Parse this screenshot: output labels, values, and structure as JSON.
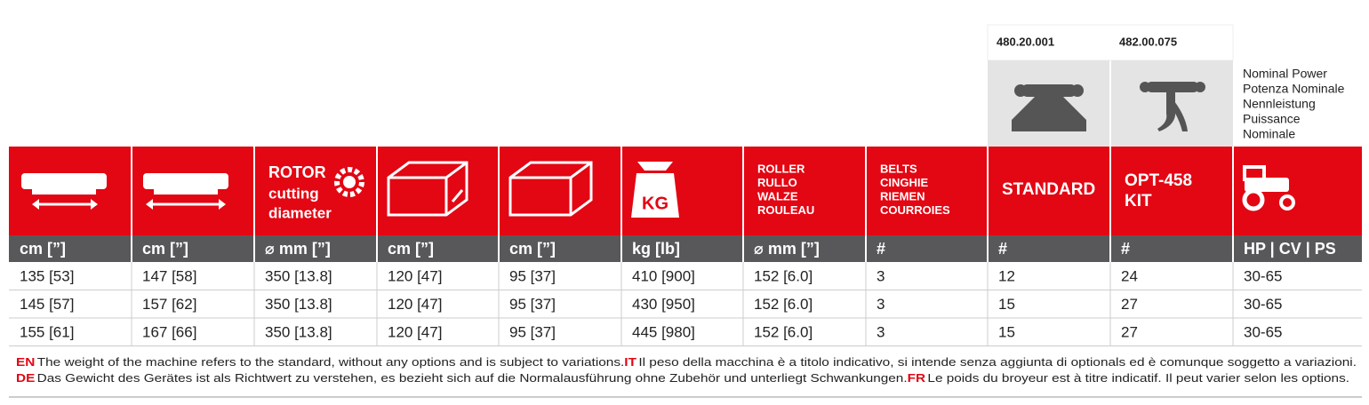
{
  "header": {
    "codes": [
      "480.20.001",
      "482.00.075"
    ],
    "nominal_power": [
      "Nominal Power",
      "Potenza Nominale",
      "Nennleistung",
      "Puissance",
      "Nominale"
    ],
    "rotor": [
      "ROTOR",
      "cutting",
      "diameter"
    ],
    "weight_icon": "KG",
    "roller": [
      "ROLLER",
      "RULLO",
      "WALZE",
      "ROULEAU"
    ],
    "belts": [
      "BELTS",
      "CINGHIE",
      "RIEMEN",
      "COURROIES"
    ],
    "standard": "STANDARD",
    "opt": [
      "OPT-458",
      "KIT"
    ]
  },
  "table": {
    "units": [
      "cm [”]",
      "cm [”]",
      "⌀ mm [”]",
      "cm [”]",
      "cm [”]",
      "kg [lb]",
      "⌀ mm [”]",
      "#",
      "#",
      "#",
      "HP | CV | PS"
    ],
    "rows": [
      [
        "135 [53]",
        "147 [58]",
        "350 [13.8]",
        "120 [47]",
        "95 [37]",
        "410 [900]",
        "152 [6.0]",
        "3",
        "12",
        "24",
        "30-65"
      ],
      [
        "145 [57]",
        "157 [62]",
        "350 [13.8]",
        "120 [47]",
        "95 [37]",
        "430 [950]",
        "152 [6.0]",
        "3",
        "15",
        "27",
        "30-65"
      ],
      [
        "155 [61]",
        "167 [66]",
        "350 [13.8]",
        "120 [47]",
        "95 [37]",
        "445 [980]",
        "152 [6.0]",
        "3",
        "15",
        "27",
        "30-65"
      ]
    ]
  },
  "footnotes": [
    [
      {
        "lang": "EN",
        "text": "The weight of the machine refers to the standard, without any options and is subject to variations."
      },
      {
        "lang": "IT",
        "text": "Il peso della macchina è a titolo indicativo, si intende senza aggiunta di optionals ed è comunque soggetto a variazioni."
      }
    ],
    [
      {
        "lang": "DE",
        "text": "Das Gewicht des Gerätes ist als Richtwert zu verstehen, es bezieht sich auf die Normalausführung ohne Zubehör und unterliegt Schwankungen."
      },
      {
        "lang": "FR",
        "text": "Le poids du broyeur est à titre indicatif. Il peut varier selon les options."
      }
    ]
  ]
}
